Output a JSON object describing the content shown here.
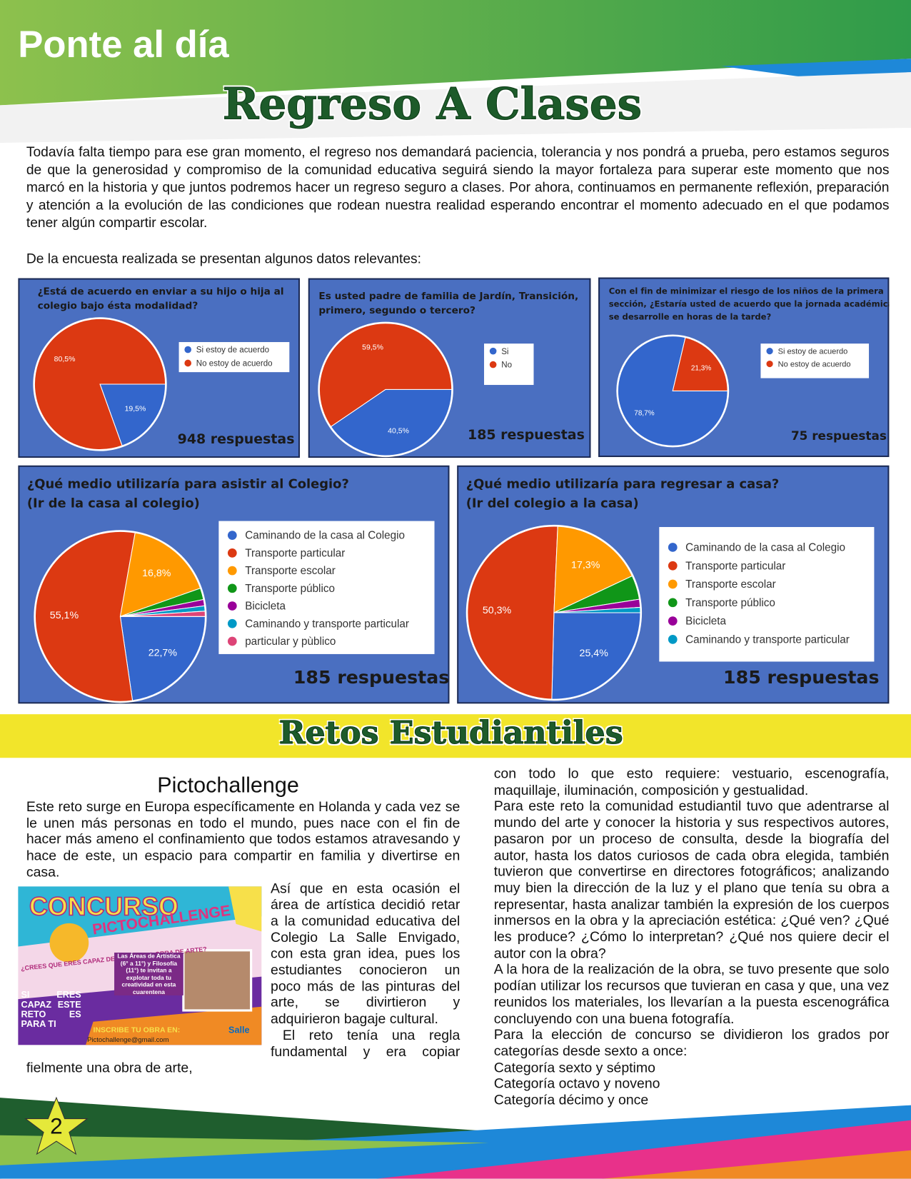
{
  "header": {
    "section": "Ponte al día",
    "title": "Regreso A Clases"
  },
  "intro": {
    "paragraph": "Todavía falta tiempo para ese gran momento, el regreso nos demandará paciencia, tolerancia y nos pondrá a prueba, pero estamos seguros de que la generosidad y compromiso de la comunidad educativa seguirá siendo la mayor fortaleza para superar este momento que nos marcó en la historia y que juntos podremos hacer un regreso seguro a clases. Por ahora, continuamos en permanente reflexión, preparación y atención a la evolución de las condiciones que rodean nuestra realidad esperando encontrar el momento adecuado en el que podamos tener algún compartir escolar.",
    "lead": "De la encuesta realizada se presentan algunos datos relevantes:"
  },
  "chart_data": [
    {
      "type": "pie",
      "title": [
        "¿Está de acuerdo en enviar a su hijo o hija al",
        "colegio bajo ésta modalidad?"
      ],
      "categories": [
        "Si estoy de acuerdo",
        "No estoy de acuerdo"
      ],
      "values": [
        19.5,
        80.5
      ],
      "value_labels": [
        "19,5%",
        "80,5%"
      ],
      "colors": [
        "#3366cc",
        "#dc3912"
      ],
      "note": "948 respuestas"
    },
    {
      "type": "pie",
      "title": [
        "Es usted padre de familia de Jardín, Transición,",
        "primero, segundo o tercero?"
      ],
      "categories": [
        "Si",
        "No"
      ],
      "values": [
        40.5,
        59.5
      ],
      "value_labels": [
        "40,5%",
        "59,5%"
      ],
      "colors": [
        "#3366cc",
        "#dc3912"
      ],
      "note": "185 respuestas"
    },
    {
      "type": "pie",
      "title": [
        "Con el fin de minimizar el riesgo de los niños de la primera",
        "sección, ¿Estaría usted de acuerdo que la jornada académica",
        "se desarrolle en horas de la tarde?"
      ],
      "categories": [
        "Si estoy de acuerdo",
        "No estoy de acuerdo"
      ],
      "values": [
        78.7,
        21.3
      ],
      "value_labels": [
        "78,7%",
        "21,3%"
      ],
      "colors": [
        "#3366cc",
        "#dc3912"
      ],
      "note": "75 respuestas"
    },
    {
      "type": "pie",
      "title": [
        "¿Qué medio utilizaría para asistir al Colegio?",
        "(Ir de la casa al colegio)"
      ],
      "categories": [
        "Caminando de la casa al Colegio",
        "Transporte particular",
        "Transporte escolar",
        "Transporte público",
        "Bicicleta",
        "Caminando y transporte particular",
        "particular y pùblico"
      ],
      "values": [
        22.7,
        55.1,
        16.8,
        2.2,
        1.2,
        1.0,
        1.0
      ],
      "value_labels": [
        "22,7%",
        "55,1%",
        "16,8%",
        null,
        null,
        null,
        null
      ],
      "colors": [
        "#3366cc",
        "#dc3912",
        "#ff9900",
        "#109618",
        "#990099",
        "#0099c6",
        "#dd4477"
      ],
      "note": "185 respuestas"
    },
    {
      "type": "pie",
      "title": [
        "¿Qué medio utilizaría para regresar a casa?",
        "(Ir del colegio a la casa)"
      ],
      "categories": [
        "Caminando de la casa al Colegio",
        "Transporte particular",
        "Transporte escolar",
        "Transporte público",
        "Bicicleta",
        "Caminando y transporte particular"
      ],
      "values": [
        25.4,
        50.3,
        17.3,
        4.5,
        1.5,
        1.0
      ],
      "value_labels": [
        "25,4%",
        "50,3%",
        "17,3%",
        null,
        null,
        null
      ],
      "colors": [
        "#3366cc",
        "#dc3912",
        "#ff9900",
        "#109618",
        "#990099",
        "#0099c6"
      ],
      "note": "185 respuestas"
    }
  ],
  "retos": {
    "title": "Retos Estudiantiles",
    "heading": "Pictochallenge",
    "left": [
      "Este reto surge en Europa específicamente en Holanda y cada vez se le unen más personas en todo el mundo, pues nace con el fin de hacer más ameno el confinamiento que todos estamos atravesando y hace de este, un espacio para compartir en familia y divertirse en casa.",
      "Así que en esta ocasión el área de artística decidió retar a la comunidad educativa del Colegio La Salle Envigado, con esta gran idea, pues los estudiantes conocieron un poco más de las pinturas del arte, se divirtieron y adquirieron bagaje cultural.",
      "El reto tenía una regla fundamental y era copiar fielmente una obra de arte,"
    ],
    "right": [
      "con todo lo que esto requiere: vestuario, escenografía, maquillaje, iluminación, composición y gestualidad.",
      "Para este reto la comunidad estudiantil tuvo que adentrarse al mundo del arte y conocer la historia y sus respectivos autores, pasaron por un proceso de consulta, desde la biografía del autor, hasta los datos curiosos de cada obra elegida, también tuvieron que convertirse en directores fotográficos; analizando muy bien la dirección de la luz y el plano que tenía su obra a representar, hasta analizar también la expresión de los cuerpos inmersos en la obra y la apreciación estética: ¿Qué ven? ¿Qué les produce? ¿Cómo lo interpretan? ¿Qué nos quiere decir el autor con la obra?",
      "A la hora de la realización de la obra, se tuvo presente que solo podían utilizar los recursos que tuvieran en casa y que, una vez reunidos los materiales, los llevarían a la puesta escenográfica concluyendo con una buena fotografía.",
      "Para la elección de concurso se dividieron los grados por categorías desde sexto a once:",
      "Categoría sexto y séptimo",
      "Categoría octavo y noveno",
      "Categoría décimo y once"
    ]
  },
  "poster": {
    "title": "CONCURSO",
    "subtitle": "PICTOCHALLENGE",
    "question": "¿CREES QUE ERES CAPAZ DE IMITAR UNA OBRA DE ARTE?",
    "call": "SI ERES CAPAZ ESTE RETO ES PARA TI",
    "invite": "Las Áreas de Artística (6° a 11°) y Filosofía (11°) te invitan a explotar toda tu creatividad en esta cuarentena",
    "signup": "INSCRIBE TU OBRA EN:",
    "email": "Pictochallenge@gmail.com",
    "brand": "Salle"
  },
  "page_number": "2"
}
